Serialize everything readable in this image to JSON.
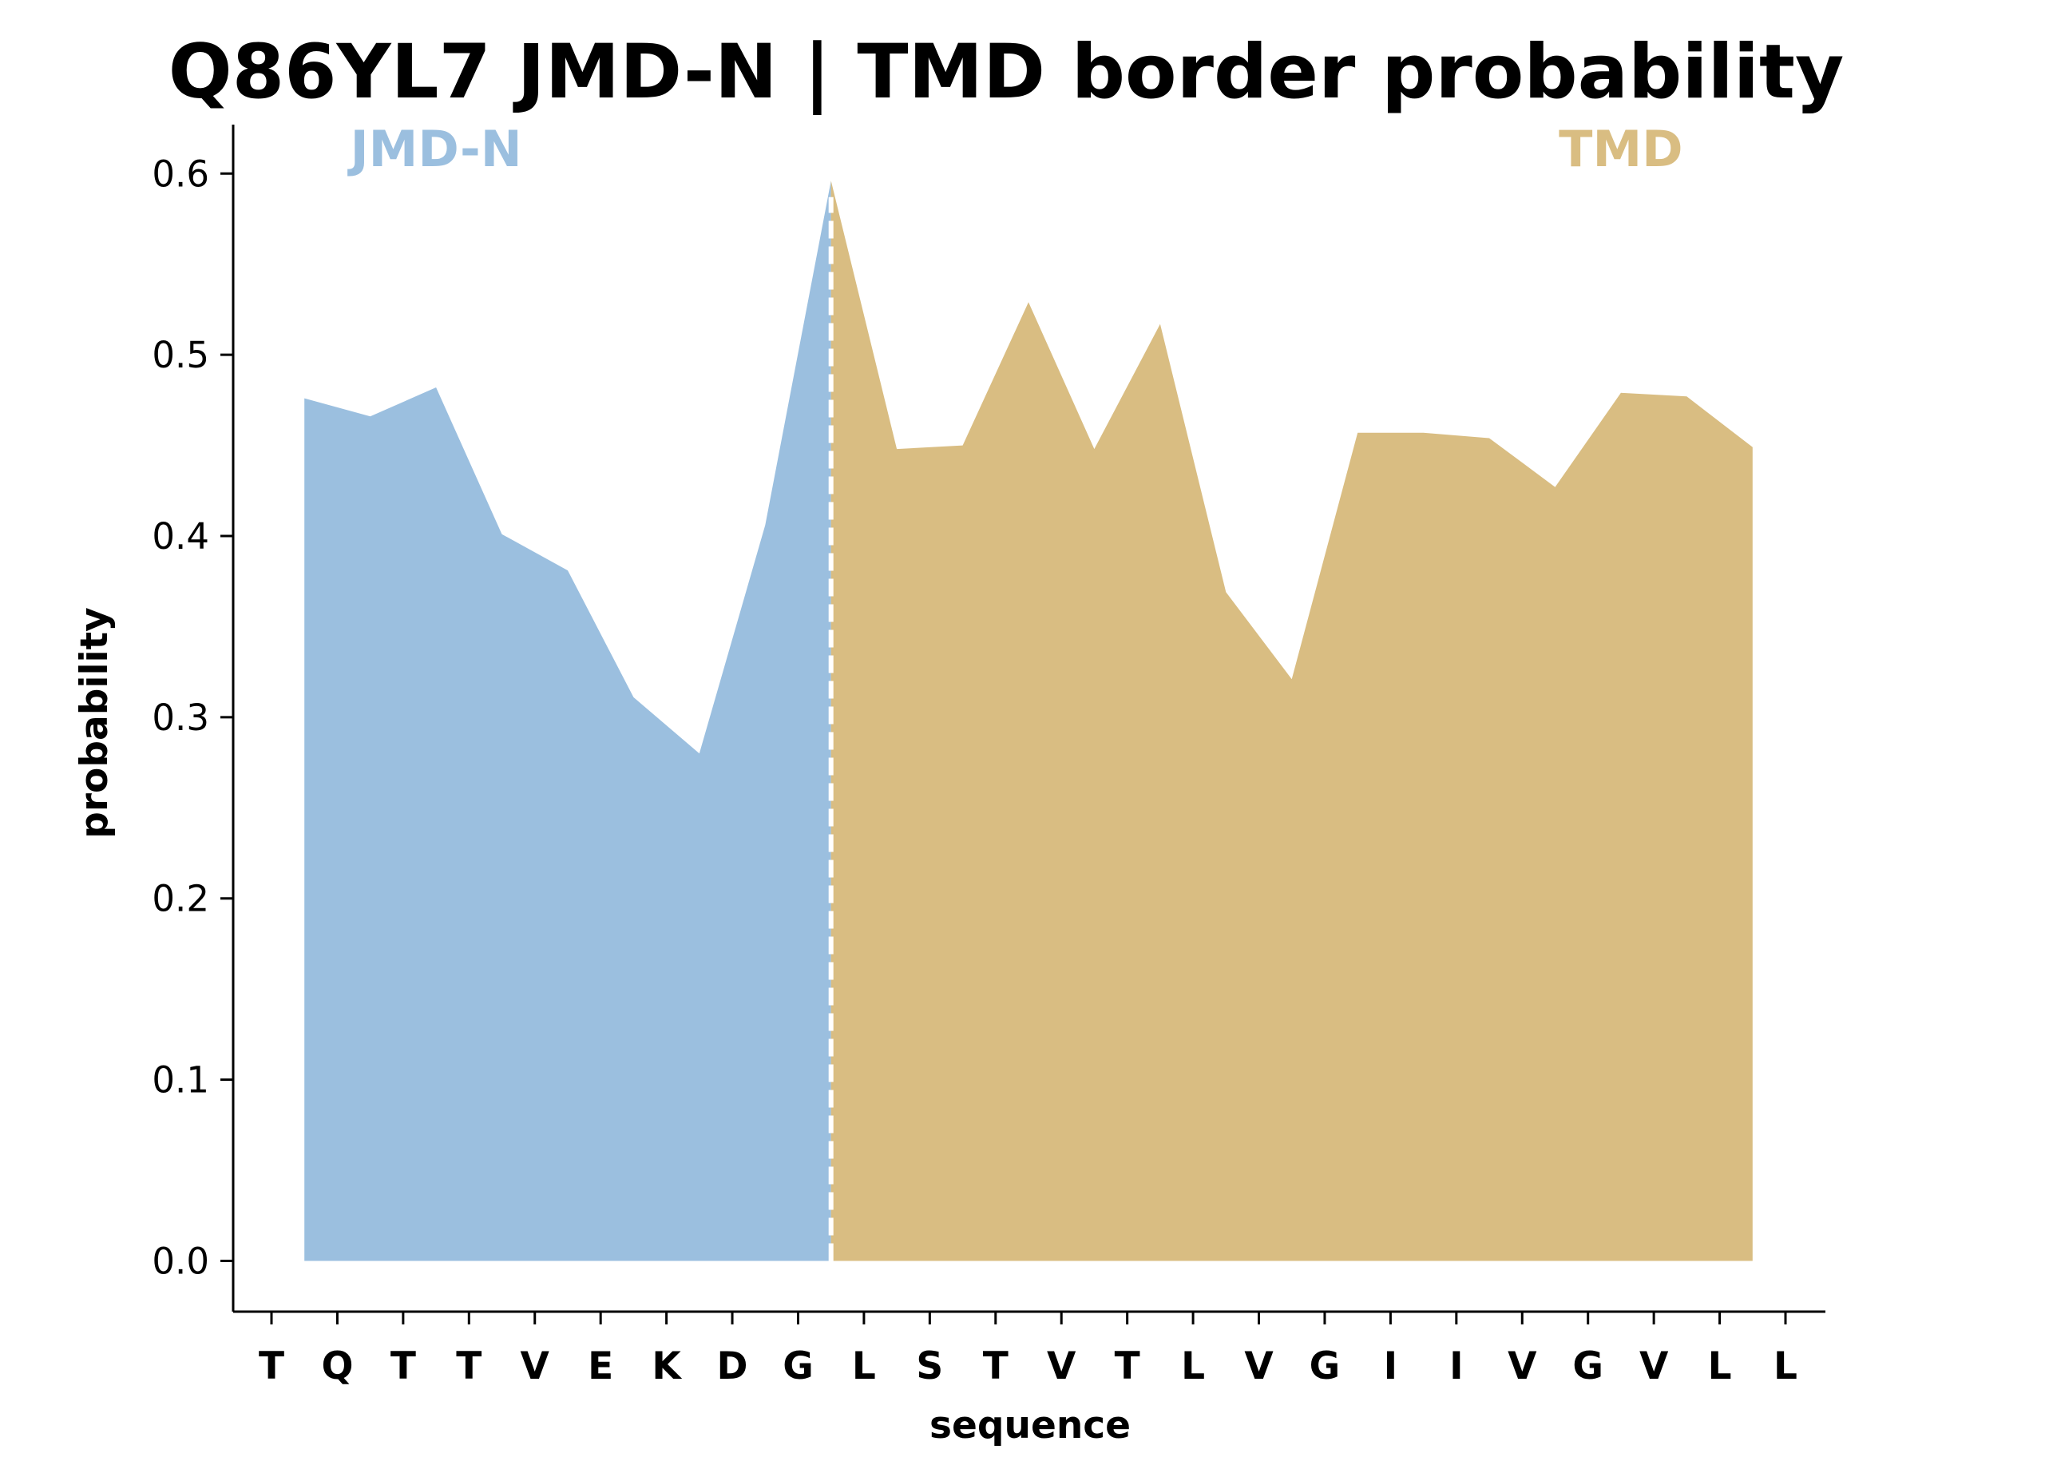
{
  "chart_data": {
    "type": "area",
    "title": "Q86YL7 JMD-N | TMD border probability",
    "xlabel": "sequence",
    "ylabel": "probability",
    "ylim": [
      -0.028,
      0.627
    ],
    "yticks": [
      "0.0",
      "0.1",
      "0.2",
      "0.3",
      "0.4",
      "0.5",
      "0.6"
    ],
    "categories": [
      "T",
      "Q",
      "T",
      "T",
      "V",
      "E",
      "K",
      "D",
      "G",
      "L",
      "S",
      "T",
      "V",
      "T",
      "L",
      "V",
      "G",
      "I",
      "I",
      "V",
      "G",
      "V",
      "L",
      "L"
    ],
    "grid": false,
    "border_position": 8.5,
    "series": [
      {
        "name": "JMD-N",
        "color": "#9bbfdf",
        "x": [
          0.5,
          1.5,
          2.5,
          3.5,
          4.5,
          5.5,
          6.5,
          7.5,
          8.5
        ],
        "y": [
          0.476,
          0.466,
          0.482,
          0.401,
          0.381,
          0.311,
          0.28,
          0.406,
          0.596
        ]
      },
      {
        "name": "TMD",
        "color": "#d9bd82",
        "x": [
          8.5,
          9.5,
          10.5,
          11.5,
          12.5,
          13.5,
          14.5,
          15.5,
          16.5,
          17.5,
          18.5,
          19.5,
          20.5,
          21.5,
          22.5
        ],
        "y": [
          0.596,
          0.448,
          0.45,
          0.529,
          0.448,
          0.517,
          0.369,
          0.321,
          0.457,
          0.457,
          0.454,
          0.427,
          0.479,
          0.477,
          0.449
        ]
      }
    ]
  }
}
